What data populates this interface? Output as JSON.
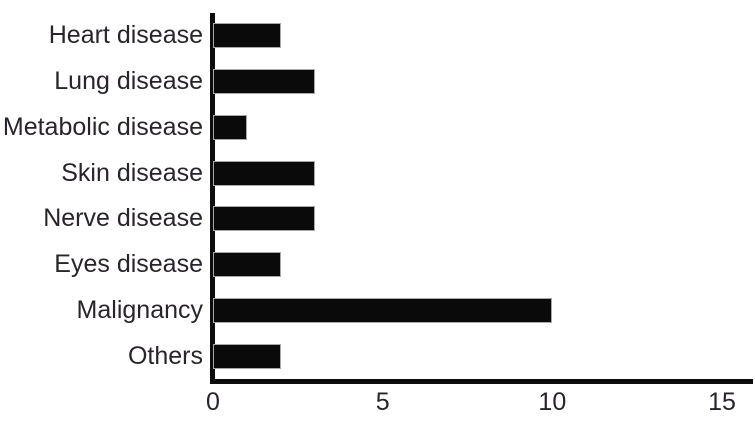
{
  "chart_data": {
    "type": "bar",
    "orientation": "horizontal",
    "title": "",
    "xlabel": "",
    "ylabel": "",
    "categories": [
      "Heart disease",
      "Lung disease",
      "Metabolic disease",
      "Skin disease",
      "Nerve disease",
      "Eyes disease",
      "Malignancy",
      "Others"
    ],
    "values": [
      2,
      3,
      1,
      3,
      3,
      2,
      10,
      2
    ],
    "x_ticks": [
      "0",
      "5",
      "10",
      "15"
    ],
    "x_tick_values": [
      0,
      5,
      10,
      15
    ],
    "xlim": [
      0,
      15
    ],
    "grid": false,
    "legend": "none",
    "bar_color": "#0a0a0a",
    "bar_outline_color": "#a8a8a8",
    "axis_color": "#0d0d0d",
    "text_color": "#29242b",
    "background_color": "#ffffff"
  }
}
